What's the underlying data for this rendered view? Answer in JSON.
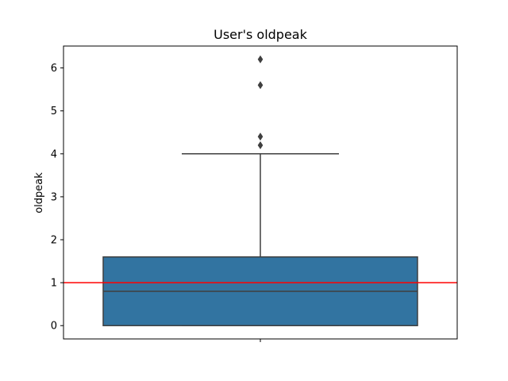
{
  "chart_data": {
    "type": "box",
    "title": "User's oldpeak",
    "xlabel": "",
    "ylabel": "oldpeak",
    "ylim": [
      -0.31,
      6.51
    ],
    "yticks": [
      0,
      1,
      2,
      3,
      4,
      5,
      6
    ],
    "grid": false,
    "box": {
      "whisker_low": 0,
      "q1": 0,
      "median": 0.8,
      "q3": 1.6,
      "whisker_high": 4.0,
      "outliers": [
        4.2,
        4.4,
        5.6,
        6.2
      ]
    },
    "reference_line": {
      "y": 1,
      "color": "#ff0000"
    },
    "colors": {
      "box_fill": "#3274a1",
      "box_edge": "#3f3f3f",
      "outlier": "#3f3f3f"
    }
  }
}
